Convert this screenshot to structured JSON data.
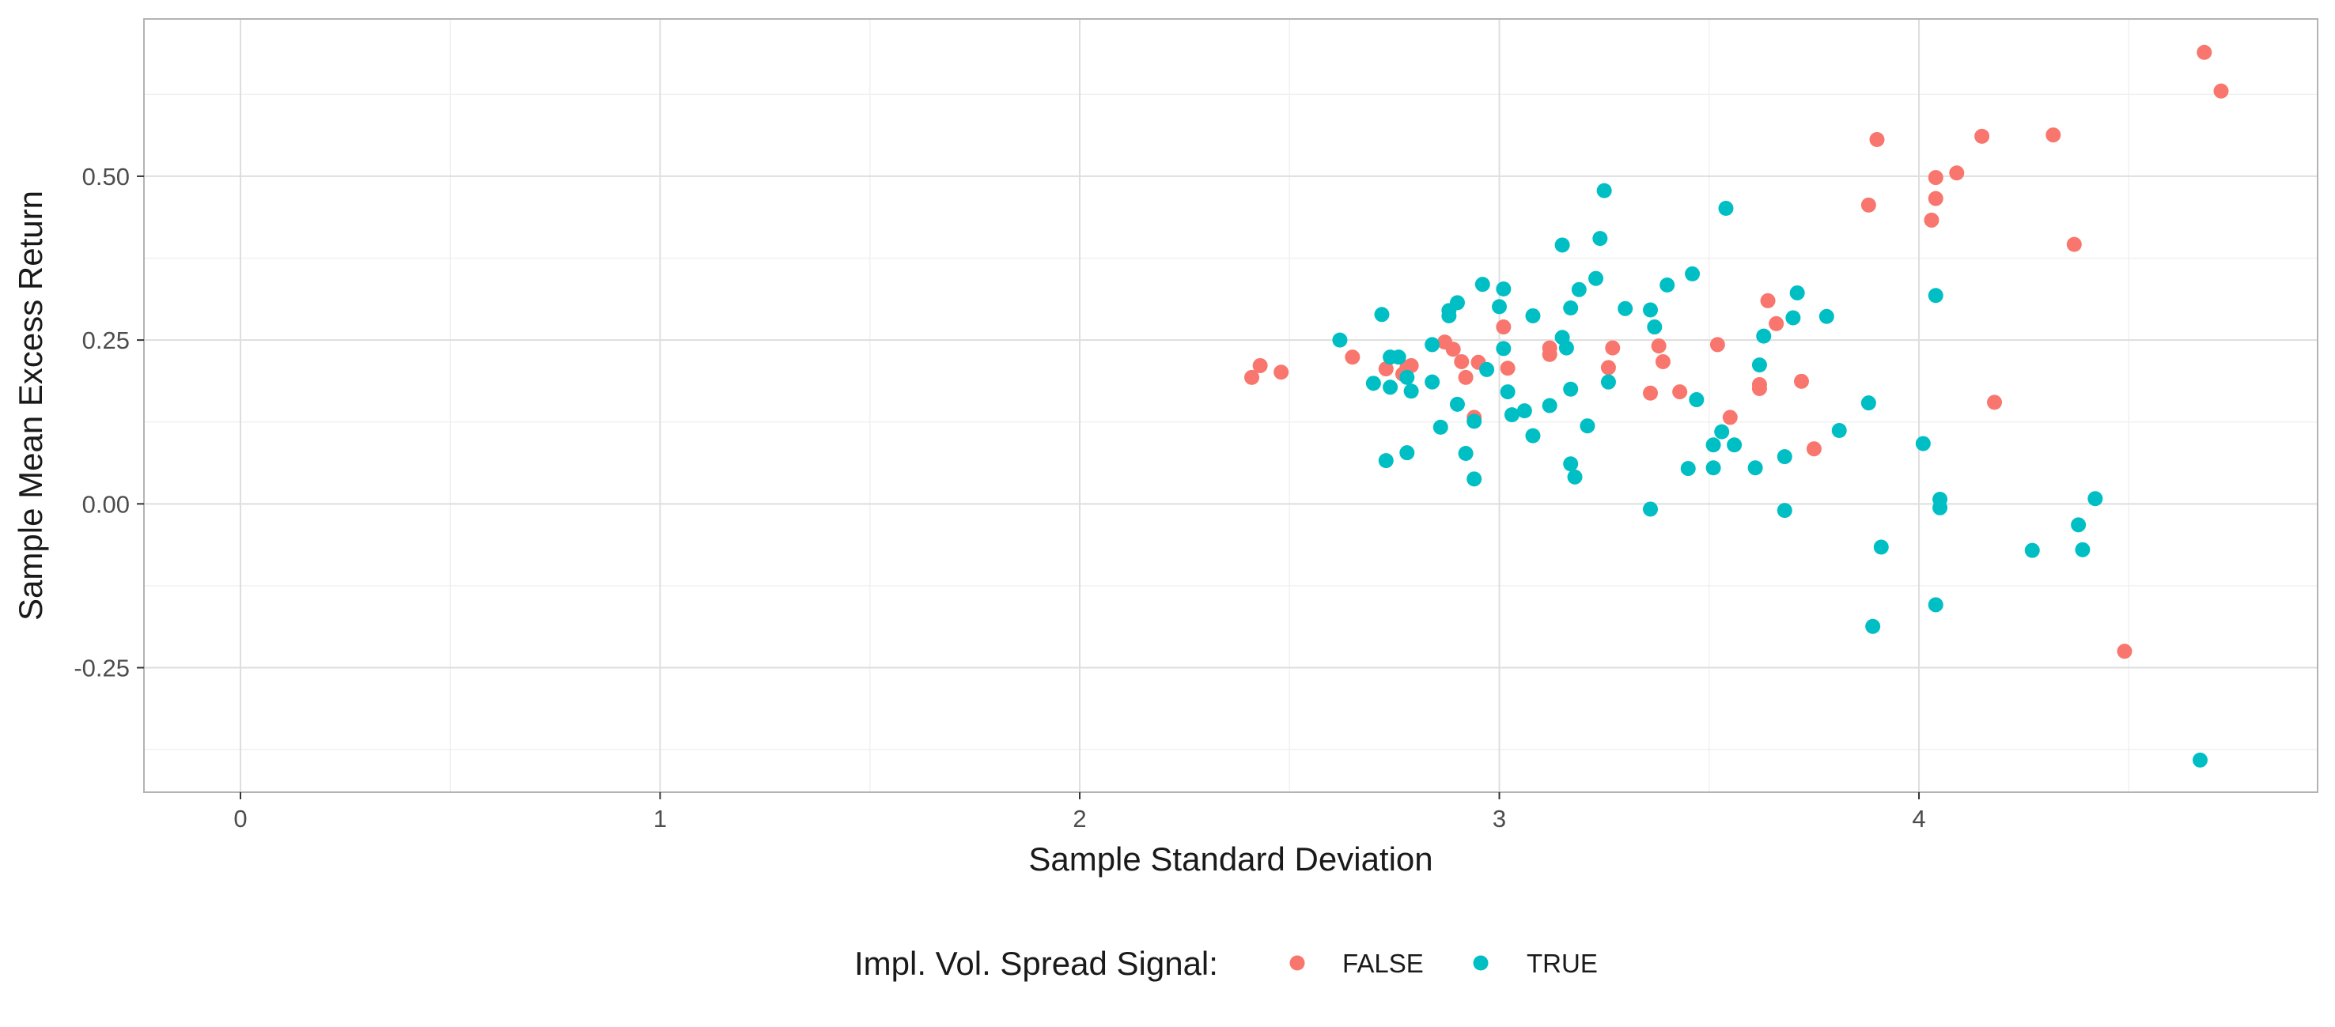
{
  "chart_data": {
    "type": "scatter",
    "xlabel": "Sample Standard Deviation",
    "ylabel": "Sample Mean Excess Return",
    "xlim": [
      -0.23,
      4.95
    ],
    "ylim": [
      -0.44,
      0.74
    ],
    "x_ticks": [
      0,
      1,
      2,
      3,
      4
    ],
    "x_tick_labels": [
      "0",
      "1",
      "2",
      "3",
      "4"
    ],
    "y_ticks": [
      -0.25,
      0.0,
      0.25,
      0.5
    ],
    "y_tick_labels": [
      "-0.25",
      "0.00",
      "0.25",
      "0.50"
    ],
    "grid": true,
    "legend": {
      "title": "Impl. Vol. Spread Signal:",
      "position": "bottom"
    },
    "series": [
      {
        "name": "FALSE",
        "color": "#F8766D",
        "points": [
          [
            2.41,
            0.193
          ],
          [
            2.43,
            0.211
          ],
          [
            2.48,
            0.201
          ],
          [
            2.65,
            0.224
          ],
          [
            2.73,
            0.206
          ],
          [
            2.77,
            0.198
          ],
          [
            2.78,
            0.208
          ],
          [
            2.79,
            0.211
          ],
          [
            2.87,
            0.247
          ],
          [
            2.89,
            0.236
          ],
          [
            2.91,
            0.217
          ],
          [
            2.92,
            0.193
          ],
          [
            2.94,
            0.132
          ],
          [
            2.95,
            0.216
          ],
          [
            3.01,
            0.27
          ],
          [
            3.02,
            0.207
          ],
          [
            3.12,
            0.238
          ],
          [
            3.12,
            0.228
          ],
          [
            3.26,
            0.208
          ],
          [
            3.27,
            0.238
          ],
          [
            3.36,
            0.169
          ],
          [
            3.38,
            0.241
          ],
          [
            3.39,
            0.217
          ],
          [
            3.43,
            0.171
          ],
          [
            3.52,
            0.243
          ],
          [
            3.55,
            0.132
          ],
          [
            3.62,
            0.182
          ],
          [
            3.62,
            0.176
          ],
          [
            3.64,
            0.31
          ],
          [
            3.66,
            0.275
          ],
          [
            3.72,
            0.187
          ],
          [
            3.75,
            0.084
          ],
          [
            3.88,
            0.456
          ],
          [
            3.9,
            0.556
          ],
          [
            4.03,
            0.433
          ],
          [
            4.04,
            0.466
          ],
          [
            4.04,
            0.498
          ],
          [
            4.09,
            0.505
          ],
          [
            4.15,
            0.561
          ],
          [
            4.18,
            0.155
          ],
          [
            4.32,
            0.563
          ],
          [
            4.37,
            0.396
          ],
          [
            4.49,
            -0.225
          ],
          [
            4.68,
            0.689
          ],
          [
            4.72,
            0.63
          ]
        ]
      },
      {
        "name": "TRUE",
        "color": "#00BFC4",
        "points": [
          [
            2.62,
            0.25
          ],
          [
            2.7,
            0.184
          ],
          [
            2.72,
            0.289
          ],
          [
            2.73,
            0.066
          ],
          [
            2.74,
            0.224
          ],
          [
            2.74,
            0.178
          ],
          [
            2.76,
            0.224
          ],
          [
            2.78,
            0.078
          ],
          [
            2.78,
            0.193
          ],
          [
            2.79,
            0.172
          ],
          [
            2.84,
            0.243
          ],
          [
            2.84,
            0.186
          ],
          [
            2.86,
            0.117
          ],
          [
            2.88,
            0.295
          ],
          [
            2.88,
            0.287
          ],
          [
            2.9,
            0.307
          ],
          [
            2.9,
            0.152
          ],
          [
            2.92,
            0.077
          ],
          [
            2.94,
            0.038
          ],
          [
            2.94,
            0.126
          ],
          [
            2.96,
            0.335
          ],
          [
            2.97,
            0.205
          ],
          [
            3.0,
            0.301
          ],
          [
            3.01,
            0.328
          ],
          [
            3.01,
            0.237
          ],
          [
            3.02,
            0.171
          ],
          [
            3.03,
            0.136
          ],
          [
            3.06,
            0.142
          ],
          [
            3.08,
            0.104
          ],
          [
            3.08,
            0.287
          ],
          [
            3.12,
            0.15
          ],
          [
            3.15,
            0.395
          ],
          [
            3.15,
            0.254
          ],
          [
            3.16,
            0.238
          ],
          [
            3.17,
            0.061
          ],
          [
            3.17,
            0.299
          ],
          [
            3.17,
            0.175
          ],
          [
            3.18,
            0.041
          ],
          [
            3.19,
            0.327
          ],
          [
            3.21,
            0.119
          ],
          [
            3.23,
            0.344
          ],
          [
            3.24,
            0.405
          ],
          [
            3.25,
            0.478
          ],
          [
            3.26,
            0.186
          ],
          [
            3.3,
            0.298
          ],
          [
            3.36,
            -0.008
          ],
          [
            3.36,
            0.296
          ],
          [
            3.37,
            0.27
          ],
          [
            3.4,
            0.334
          ],
          [
            3.45,
            0.054
          ],
          [
            3.46,
            0.351
          ],
          [
            3.47,
            0.159
          ],
          [
            3.51,
            0.09
          ],
          [
            3.51,
            0.055
          ],
          [
            3.53,
            0.11
          ],
          [
            3.54,
            0.451
          ],
          [
            3.56,
            0.09
          ],
          [
            3.61,
            0.055
          ],
          [
            3.62,
            0.212
          ],
          [
            3.63,
            0.256
          ],
          [
            3.68,
            0.072
          ],
          [
            3.68,
            -0.01
          ],
          [
            3.7,
            0.284
          ],
          [
            3.71,
            0.322
          ],
          [
            3.78,
            0.286
          ],
          [
            3.81,
            0.112
          ],
          [
            3.88,
            0.154
          ],
          [
            3.89,
            -0.187
          ],
          [
            3.91,
            -0.066
          ],
          [
            4.01,
            0.092
          ],
          [
            4.04,
            0.318
          ],
          [
            4.04,
            -0.154
          ],
          [
            4.05,
            0.007
          ],
          [
            4.05,
            -0.006
          ],
          [
            4.27,
            -0.071
          ],
          [
            4.38,
            -0.032
          ],
          [
            4.39,
            -0.07
          ],
          [
            4.42,
            0.008
          ],
          [
            4.67,
            -0.391
          ]
        ]
      }
    ]
  }
}
